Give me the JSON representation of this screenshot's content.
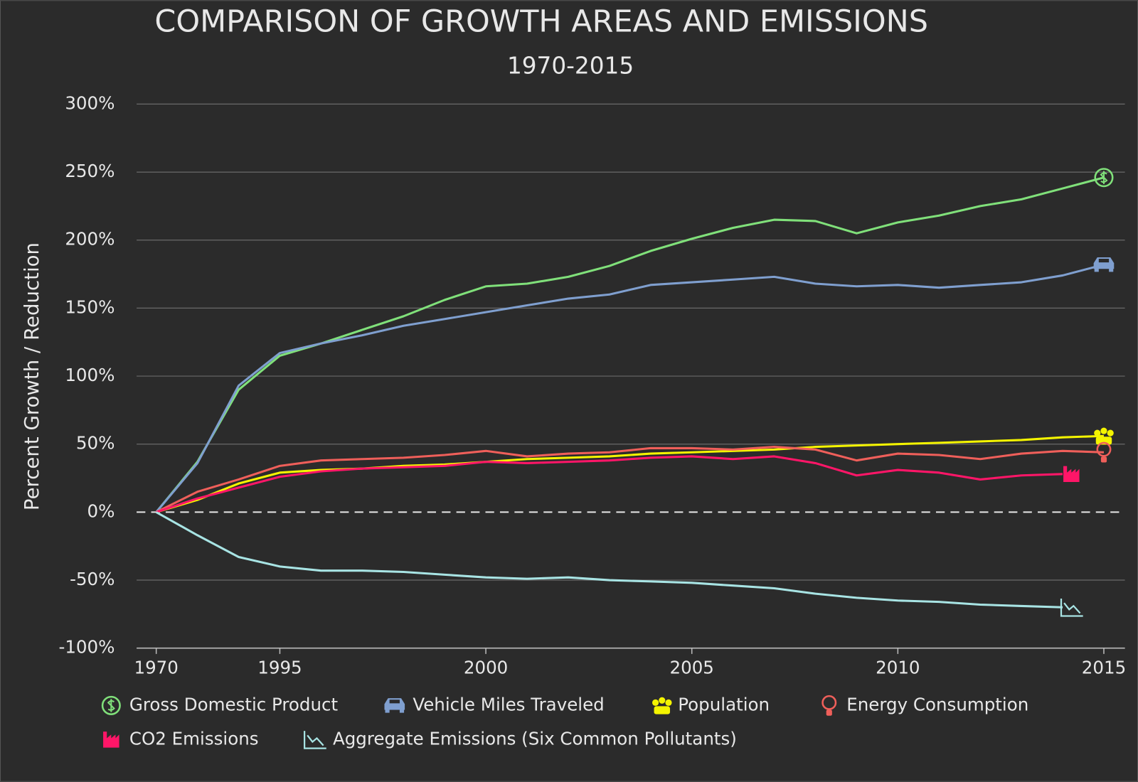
{
  "chart_data": {
    "type": "line",
    "title": "COMPARISON OF GROWTH AREAS AND EMISSIONS",
    "subtitle": "1970-2015",
    "y_label": "Percent Growth / Reduction",
    "categories": [
      "1970",
      null,
      null,
      "1995",
      null,
      null,
      null,
      null,
      "2000",
      null,
      null,
      null,
      null,
      "2005",
      null,
      null,
      null,
      null,
      "2010",
      null,
      null,
      null,
      null,
      "2015"
    ],
    "ylim": [
      -100,
      300
    ],
    "yticks": [
      {
        "value": -100,
        "label": "-100%"
      },
      {
        "value": -50,
        "label": "-50%"
      },
      {
        "value": 0,
        "label": "0%"
      },
      {
        "value": 50,
        "label": "50%"
      },
      {
        "value": 100,
        "label": "100%"
      },
      {
        "value": 150,
        "label": "150%"
      },
      {
        "value": 200,
        "label": "200%"
      },
      {
        "value": 250,
        "label": "250%"
      },
      {
        "value": 300,
        "label": "300%"
      }
    ],
    "grid": true,
    "zero_line": true,
    "series": [
      {
        "name": "Gross Domestic Product",
        "color": "#80e07a",
        "values": [
          0,
          37,
          90,
          115,
          124,
          134,
          144,
          156,
          166,
          168,
          173,
          181,
          192,
          201,
          209,
          215,
          214,
          205,
          213,
          218,
          225,
          230,
          238,
          246
        ]
      },
      {
        "name": "Vehicle Miles Traveled",
        "color": "#7f9fcf",
        "values": [
          0,
          36,
          93,
          117,
          124,
          130,
          137,
          142,
          147,
          152,
          157,
          160,
          167,
          169,
          171,
          173,
          168,
          166,
          167,
          165,
          167,
          169,
          174,
          182
        ]
      },
      {
        "name": "Population",
        "color": "#f4f400",
        "values": [
          0,
          9,
          21,
          29,
          31,
          32,
          34,
          35,
          37,
          39,
          40,
          41,
          43,
          44,
          45,
          46,
          48,
          49,
          50,
          51,
          52,
          53,
          55,
          56
        ]
      },
      {
        "name": "Energy Consumption",
        "color": "#ef5f5a",
        "values": [
          0,
          15,
          24,
          34,
          38,
          39,
          40,
          42,
          45,
          41,
          43,
          44,
          47,
          47,
          46,
          48,
          46,
          38,
          43,
          42,
          39,
          43,
          45,
          44
        ]
      },
      {
        "name": "CO2 Emissions",
        "color": "#ff1668",
        "values": [
          0,
          10,
          18,
          26,
          30,
          32,
          33,
          34,
          37,
          36,
          37,
          38,
          40,
          41,
          39,
          41,
          36,
          27,
          31,
          29,
          24,
          27,
          28,
          null
        ]
      },
      {
        "name": "Aggregate Emissions (Six Common Pollutants)",
        "color": "#a8e4e4",
        "values": [
          0,
          -17,
          -33,
          -40,
          -43,
          -43,
          -44,
          -46,
          -48,
          -49,
          -48,
          -50,
          -51,
          -52,
          -54,
          -56,
          -60,
          -63,
          -65,
          -66,
          -68,
          -69,
          -70,
          null
        ]
      }
    ]
  }
}
